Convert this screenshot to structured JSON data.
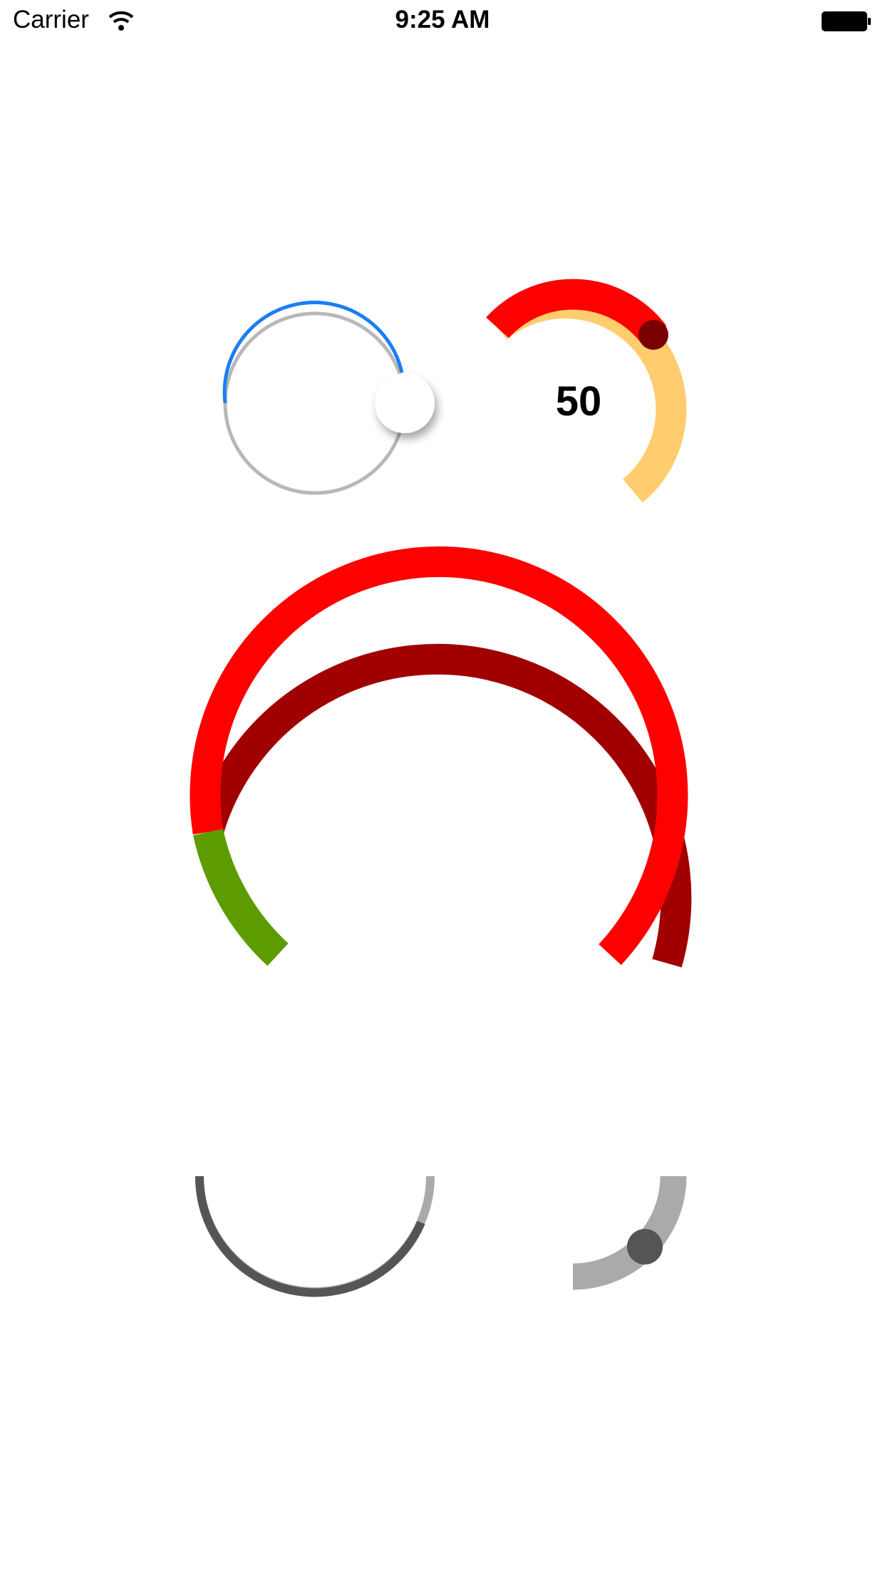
{
  "status_bar": {
    "carrier": "Carrier",
    "time": "9:25 AM",
    "wifi_icon": "wifi-icon",
    "battery_icon": "battery-icon"
  },
  "sliders": {
    "blue_circular_slider": {
      "value_fraction": 0.42,
      "track_color": "#b8b8b8",
      "progress_color": "#1a7ef5",
      "thumb_color": "#ffffff"
    },
    "gauge_slider": {
      "value": "50",
      "track_color": "#ffcc6e",
      "progress_color": "#ff0000",
      "thumb_color": "#7a0000"
    },
    "large_arc_slider": {
      "lower_color": "#5d9c00",
      "upper_color": "#ff0000",
      "upper_shadow_color": "#a00000"
    },
    "gray_semicircle_slider": {
      "track_color": "#aaaaaa",
      "progress_color": "#555555"
    },
    "gray_quarter_slider": {
      "track_color": "#aaaaaa",
      "thumb_color": "#555555"
    }
  }
}
